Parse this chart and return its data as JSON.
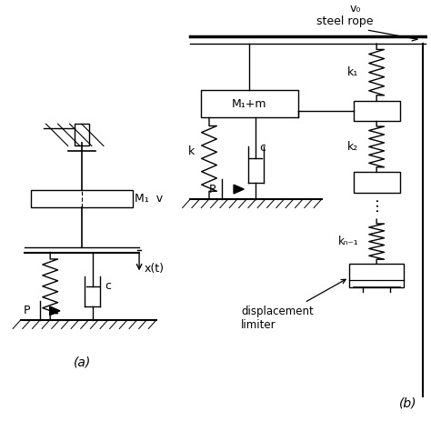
{
  "bg_color": "#ffffff",
  "line_color": "#000000",
  "label_a": "(a)",
  "label_b": "(b)",
  "label_M1v": "M₁  v",
  "label_xt": "x(t)",
  "label_c_a": "c",
  "label_P_a": "P",
  "label_M1m": "M₁+m",
  "label_k": "k",
  "label_c_b": "c",
  "label_P_b": "P",
  "label_k1": "k₁",
  "label_k2": "k₂",
  "label_kn1": "kₙ₋₁",
  "label_v0": "v₀",
  "label_rope": "steel rope",
  "label_disp": "displacement\nlimiter"
}
